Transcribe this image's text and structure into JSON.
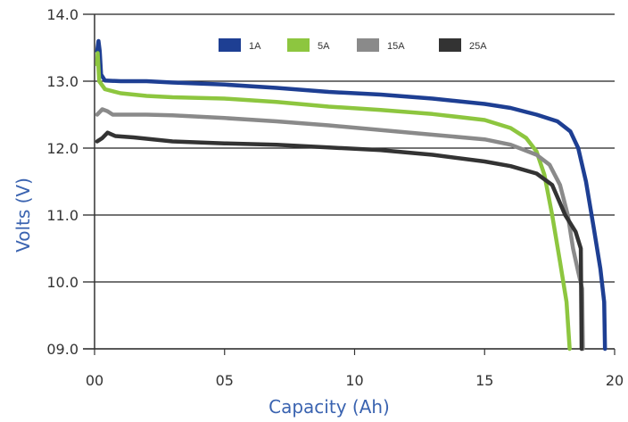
{
  "chart_data": {
    "type": "line",
    "title": "",
    "xlabel": "Capacity (Ah)",
    "ylabel": "Volts (V)",
    "xlim": [
      0,
      20
    ],
    "ylim": [
      9,
      14
    ],
    "x_ticks": [
      0,
      5,
      10,
      15,
      20
    ],
    "x_tick_labels": [
      "00",
      "05",
      "10",
      "15",
      "20"
    ],
    "y_ticks": [
      9,
      10,
      11,
      12,
      13,
      14
    ],
    "y_tick_labels": [
      "09.0",
      "10.0",
      "11.0",
      "12.0",
      "13.0",
      "14.0"
    ],
    "grid": "horizontal",
    "legend_position": "top",
    "series": [
      {
        "name": "1A",
        "color": "#1e3f93",
        "points": [
          [
            0.1,
            13.45
          ],
          [
            0.15,
            13.6
          ],
          [
            0.2,
            13.45
          ],
          [
            0.25,
            13.1
          ],
          [
            0.4,
            13.01
          ],
          [
            1,
            13.0
          ],
          [
            2,
            13.0
          ],
          [
            3,
            12.98
          ],
          [
            5,
            12.95
          ],
          [
            7,
            12.9
          ],
          [
            9,
            12.84
          ],
          [
            11,
            12.8
          ],
          [
            13,
            12.74
          ],
          [
            15,
            12.66
          ],
          [
            16,
            12.6
          ],
          [
            17,
            12.5
          ],
          [
            17.8,
            12.4
          ],
          [
            18.3,
            12.25
          ],
          [
            18.6,
            12.0
          ],
          [
            18.9,
            11.5
          ],
          [
            19.2,
            10.8
          ],
          [
            19.45,
            10.2
          ],
          [
            19.6,
            9.7
          ],
          [
            19.63,
            9.0
          ]
        ]
      },
      {
        "name": "5A",
        "color": "#8dc63f",
        "points": [
          [
            0.1,
            13.25
          ],
          [
            0.12,
            13.42
          ],
          [
            0.18,
            13.0
          ],
          [
            0.4,
            12.88
          ],
          [
            1,
            12.82
          ],
          [
            2,
            12.78
          ],
          [
            3,
            12.76
          ],
          [
            5,
            12.74
          ],
          [
            7,
            12.69
          ],
          [
            9,
            12.62
          ],
          [
            11,
            12.57
          ],
          [
            13,
            12.51
          ],
          [
            15,
            12.42
          ],
          [
            16,
            12.3
          ],
          [
            16.6,
            12.15
          ],
          [
            17,
            11.95
          ],
          [
            17.3,
            11.6
          ],
          [
            17.6,
            11.0
          ],
          [
            17.9,
            10.3
          ],
          [
            18.15,
            9.7
          ],
          [
            18.27,
            9.0
          ]
        ]
      },
      {
        "name": "15A",
        "color": "#8a8a8a",
        "points": [
          [
            0.1,
            12.5
          ],
          [
            0.3,
            12.58
          ],
          [
            0.5,
            12.55
          ],
          [
            0.7,
            12.5
          ],
          [
            1,
            12.5
          ],
          [
            2,
            12.5
          ],
          [
            3,
            12.49
          ],
          [
            5,
            12.45
          ],
          [
            7,
            12.4
          ],
          [
            9,
            12.34
          ],
          [
            11,
            12.27
          ],
          [
            13,
            12.2
          ],
          [
            15,
            12.13
          ],
          [
            16,
            12.05
          ],
          [
            17,
            11.9
          ],
          [
            17.5,
            11.75
          ],
          [
            17.9,
            11.45
          ],
          [
            18.2,
            11.0
          ],
          [
            18.4,
            10.5
          ],
          [
            18.6,
            10.15
          ],
          [
            18.75,
            9.9
          ],
          [
            18.78,
            9.0
          ]
        ]
      },
      {
        "name": "25A",
        "color": "#333333",
        "points": [
          [
            0.1,
            12.1
          ],
          [
            0.3,
            12.15
          ],
          [
            0.5,
            12.23
          ],
          [
            0.8,
            12.18
          ],
          [
            1.5,
            12.16
          ],
          [
            2,
            12.14
          ],
          [
            3,
            12.1
          ],
          [
            5,
            12.07
          ],
          [
            7,
            12.05
          ],
          [
            9,
            12.01
          ],
          [
            11,
            11.97
          ],
          [
            13,
            11.9
          ],
          [
            15,
            11.8
          ],
          [
            16,
            11.73
          ],
          [
            17,
            11.62
          ],
          [
            17.6,
            11.45
          ],
          [
            18.1,
            11.0
          ],
          [
            18.5,
            10.75
          ],
          [
            18.7,
            10.5
          ],
          [
            18.73,
            9.0
          ]
        ]
      }
    ]
  }
}
